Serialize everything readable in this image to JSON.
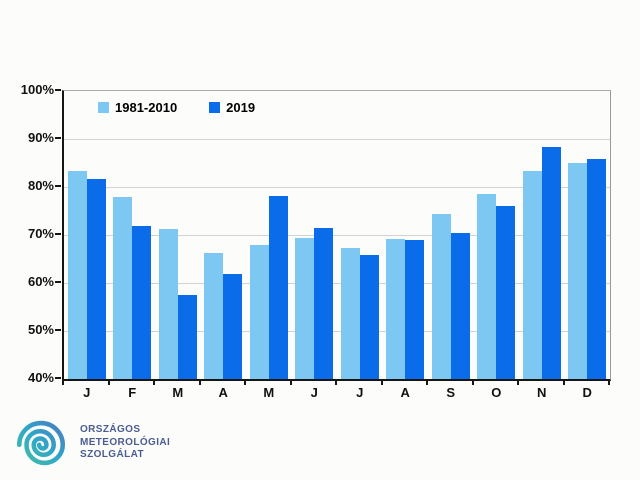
{
  "chart_data": {
    "type": "bar",
    "categories": [
      "J",
      "F",
      "M",
      "A",
      "M",
      "J",
      "J",
      "A",
      "S",
      "O",
      "N",
      "D"
    ],
    "series": [
      {
        "name": "1981-2010",
        "color": "#7DC8F2",
        "values": [
          83.3,
          78.0,
          71.3,
          66.3,
          68.0,
          69.3,
          67.2,
          69.2,
          74.4,
          78.6,
          83.3,
          85.1
        ]
      },
      {
        "name": "2019",
        "color": "#0A6CE8",
        "values": [
          81.7,
          71.8,
          57.6,
          61.8,
          78.2,
          71.5,
          65.8,
          69.0,
          70.4,
          76.1,
          88.4,
          85.9
        ]
      }
    ],
    "title": "",
    "xlabel": "",
    "ylabel": "",
    "ylim": [
      40,
      100
    ],
    "yticks": [
      "40%",
      "50%",
      "60%",
      "70%",
      "80%",
      "90%",
      "100%"
    ],
    "grid": true,
    "legend_position": "top-left-inside",
    "gridline_color": "#D2D2D2",
    "axis_color": "#161616"
  },
  "footer_logo": {
    "icon": "swirl-spiral-icon",
    "lines": [
      "ORSZÁGOS",
      "METEOROLÓGIAI",
      "SZOLGÁLAT"
    ],
    "text_color": "#4C5C92",
    "icon_colors": [
      "#45BFA0",
      "#2FA7C9",
      "#4A7BC0"
    ]
  }
}
